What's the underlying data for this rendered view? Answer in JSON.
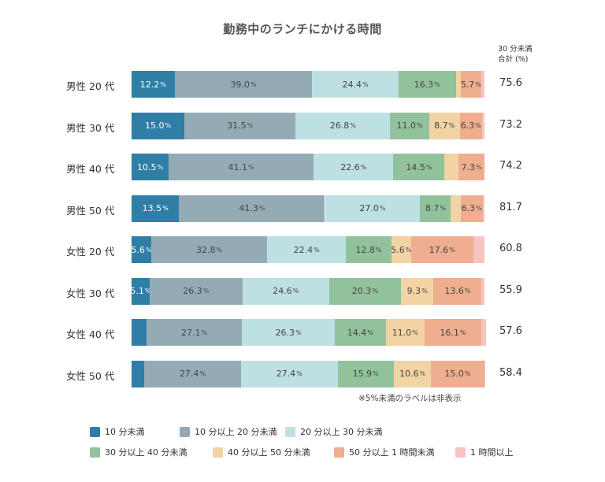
{
  "chart_data": {
    "type": "bar",
    "orientation": "horizontal-stacked-100",
    "title": "勤務中のランチにかける時間",
    "right_column_header": "30 分未満\n合計 (%)",
    "categories": [
      "男性 20 代",
      "男性 30 代",
      "男性 40 代",
      "男性 50 代",
      "女性 20 代",
      "女性 30 代",
      "女性 40 代",
      "女性 50 代"
    ],
    "series": [
      {
        "name": "10 分未満",
        "color": "#2f7ea6",
        "values": [
          12.2,
          15.0,
          10.5,
          13.5,
          5.6,
          5.1,
          4.2,
          3.6
        ]
      },
      {
        "name": "10 分以上 20 分未満",
        "color": "#94abb6",
        "values": [
          39.0,
          31.5,
          41.1,
          41.3,
          32.8,
          26.3,
          27.1,
          27.4
        ]
      },
      {
        "name": "20 分以上 30 分未満",
        "color": "#bde0e3",
        "values": [
          24.4,
          26.8,
          22.6,
          27.0,
          22.4,
          24.6,
          26.3,
          27.4
        ]
      },
      {
        "name": "30 分以上 40 分未満",
        "color": "#92c29b",
        "values": [
          16.3,
          11.0,
          14.5,
          8.7,
          12.8,
          20.3,
          14.4,
          15.9
        ]
      },
      {
        "name": "40 分以上 50 分未満",
        "color": "#f2d3a4",
        "values": [
          1.4,
          8.7,
          4.0,
          2.7,
          5.6,
          9.3,
          11.0,
          10.6
        ]
      },
      {
        "name": "50 分以上 1 時間未満",
        "color": "#eeae8f",
        "values": [
          5.7,
          6.3,
          7.3,
          6.3,
          17.6,
          13.6,
          16.1,
          15.0
        ]
      },
      {
        "name": "1 時間以上",
        "color": "#f6c5c3",
        "values": [
          1.0,
          0.7,
          0.0,
          0.5,
          3.2,
          0.8,
          1.3,
          0.2
        ]
      }
    ],
    "totals_under_30": [
      75.6,
      73.2,
      74.2,
      81.7,
      60.8,
      55.9,
      57.6,
      58.4
    ],
    "label_threshold": 5,
    "note": "※5%未満のラベルは非表示",
    "xlim": [
      0,
      100
    ],
    "grid": false,
    "legend_position": "bottom"
  }
}
